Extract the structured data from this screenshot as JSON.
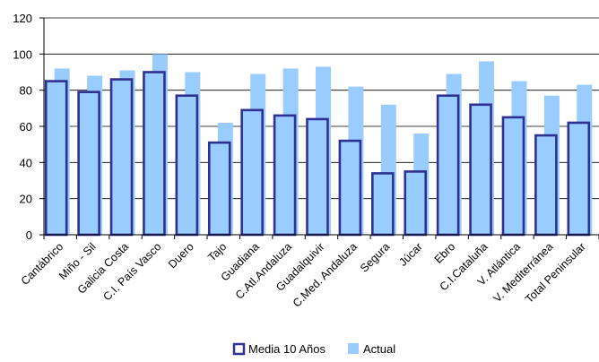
{
  "chart_data": {
    "type": "bar",
    "title": "",
    "xlabel": "",
    "ylabel": "",
    "ylim": [
      0,
      120
    ],
    "yticks": [
      0,
      20,
      40,
      60,
      80,
      100,
      120
    ],
    "grid": true,
    "legend_position": "bottom",
    "categories": [
      "Cantábrico",
      "Miño - Sil",
      "Galicia Costa",
      "C.I. País Vasco",
      "Duero",
      "Tajo",
      "Guadiana",
      "C.Atl.Andaluza",
      "Guadalquivir",
      "C.Med. Andaluza",
      "Segura",
      "Júcar",
      "Ebro",
      "C.I.Cataluña",
      "V. Atlántica",
      "V. Mediterránea",
      "Total Peninsular"
    ],
    "series": [
      {
        "name": "Media 10 Años",
        "color": "#ffffff",
        "border_color": "#2e3192",
        "fill_color": "#99ccff",
        "values": [
          85,
          79,
          86,
          90,
          77,
          51,
          69,
          66,
          64,
          52,
          34,
          35,
          77,
          72,
          65,
          55,
          62
        ]
      },
      {
        "name": "Actual",
        "color": "#99ccff",
        "values": [
          92,
          88,
          91,
          100,
          90,
          62,
          89,
          92,
          93,
          82,
          72,
          56,
          89,
          96,
          85,
          77,
          83
        ]
      }
    ]
  }
}
